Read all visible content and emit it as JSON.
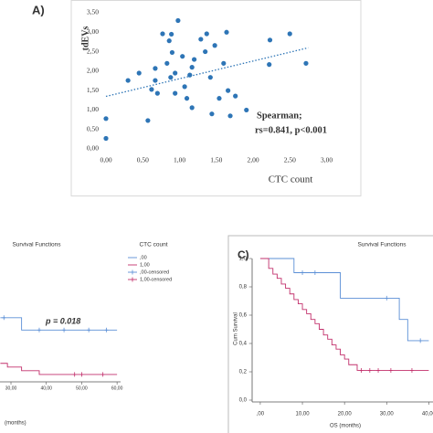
{
  "chart_data": [
    {
      "type": "scatter",
      "label": "A)",
      "ylabel": "tdEVs",
      "xlabel": "CTC count",
      "annotations": [
        "Spearman;",
        "rs=0.841, p<0.001"
      ],
      "color": "#2e75b6",
      "x": [
        0,
        0,
        0.3,
        0.45,
        0.57,
        0.62,
        0.67,
        0.67,
        0.7,
        0.77,
        0.83,
        0.86,
        0.89,
        0.9,
        0.88,
        0.94,
        0.98,
        0.94,
        1.04,
        1.07,
        1.1,
        1.14,
        1.17,
        1.17,
        1.2,
        1.29,
        1.35,
        1.37,
        1.42,
        1.44,
        1.48,
        1.54,
        1.6,
        1.64,
        1.66,
        1.69,
        1.76,
        1.91,
        2.22,
        2.23,
        2.5,
        2.72
      ],
      "values": [
        0.78,
        0.27,
        1.76,
        1.95,
        0.73,
        1.53,
        2.07,
        1.76,
        1.43,
        2.96,
        2.2,
        2.78,
        2.95,
        2.48,
        1.84,
        1.95,
        3.3,
        1.43,
        2.38,
        1.6,
        1.3,
        1.9,
        2.1,
        1.06,
        2.3,
        2.82,
        2.5,
        2.96,
        1.84,
        0.9,
        2.66,
        1.3,
        2.2,
        3.0,
        1.5,
        0.85,
        1.36,
        1.0,
        2.17,
        2.8,
        2.96,
        2.2
      ],
      "trendline": {
        "x": [
          0,
          2.75
        ],
        "values": [
          1.35,
          2.6
        ]
      },
      "xlim": [
        0,
        3
      ],
      "ylim": [
        0,
        3.5
      ],
      "xticks": [
        {
          "value": 0,
          "label": "0,00"
        },
        {
          "value": 0.5,
          "label": "0,50"
        },
        {
          "value": 1,
          "label": "1,00"
        },
        {
          "value": 1.5,
          "label": "1,50"
        },
        {
          "value": 2,
          "label": "2,00"
        },
        {
          "value": 2.5,
          "label": "2,50"
        },
        {
          "value": 3,
          "label": "3,00"
        }
      ],
      "yticks": [
        {
          "value": 0,
          "label": "0,00"
        },
        {
          "value": 0.5,
          "label": "0,50"
        },
        {
          "value": 1,
          "label": "1,00"
        },
        {
          "value": 1.5,
          "label": "1,50"
        },
        {
          "value": 2,
          "label": "2,00"
        },
        {
          "value": 2.5,
          "label": "2,50"
        },
        {
          "value": 3,
          "label": "3,00"
        },
        {
          "value": 3.5,
          "label": "3,50"
        }
      ]
    },
    {
      "type": "line",
      "title": "Survival Functions",
      "legend_title": "CTC count",
      "annotation": "p = 0.018",
      "xlabel": "(months)",
      "xlim": [
        27,
        61
      ],
      "ylim": [
        0,
        1
      ],
      "xticks": [
        {
          "value": 30,
          "label": "30,00"
        },
        {
          "value": 40,
          "label": "40,00"
        },
        {
          "value": 50,
          "label": "50,00"
        },
        {
          "value": 60,
          "label": "60,00"
        }
      ],
      "series": [
        {
          "name": ",00",
          "color": "#5b8fd6",
          "style": "step",
          "x": [
            27,
            33,
            60
          ],
          "values": [
            0.52,
            0.42,
            0.42
          ]
        },
        {
          "name": "1,00",
          "color": "#c2306c",
          "style": "step",
          "x": [
            27,
            29,
            33,
            38,
            60
          ],
          "values": [
            0.15,
            0.12,
            0.09,
            0.06,
            0.06
          ]
        },
        {
          "name": ",00-censored",
          "color": "#5b8fd6",
          "style": "censor",
          "x": [
            28,
            38,
            45,
            52,
            57
          ],
          "values": [
            0.52,
            0.42,
            0.42,
            0.42,
            0.42
          ]
        },
        {
          "name": "1,00-censored",
          "color": "#c2306c",
          "style": "censor",
          "x": [
            48,
            50,
            56
          ],
          "values": [
            0.06,
            0.06,
            0.06
          ]
        }
      ]
    },
    {
      "type": "line",
      "label": "C)",
      "title": "Survival Functions",
      "ylabel": "Cum Survival",
      "xlabel": "OS (months)",
      "xlim": [
        -2,
        41
      ],
      "ylim": [
        0,
        1
      ],
      "xticks": [
        {
          "value": 0,
          "label": ",00"
        },
        {
          "value": 10,
          "label": "10,00"
        },
        {
          "value": 20,
          "label": "20,00"
        },
        {
          "value": 30,
          "label": "30,00"
        },
        {
          "value": 40,
          "label": "40,00"
        }
      ],
      "yticks": [
        {
          "value": 0,
          "label": "0,0"
        },
        {
          "value": 0.2,
          "label": "0,2"
        },
        {
          "value": 0.4,
          "label": "0,4"
        },
        {
          "value": 0.6,
          "label": "0,6"
        },
        {
          "value": 0.8,
          "label": "0,8"
        },
        {
          "value": 1,
          "label": "1,0"
        }
      ],
      "series": [
        {
          "color": "#5b8fd6",
          "style": "step",
          "x": [
            0,
            8,
            19,
            33,
            35,
            40
          ],
          "values": [
            1,
            0.9,
            0.72,
            0.57,
            0.42,
            0.42
          ]
        },
        {
          "color": "#c2306c",
          "style": "step",
          "x": [
            0,
            2,
            3,
            4,
            5,
            6,
            7,
            8,
            9,
            10,
            11,
            12,
            13,
            14,
            15,
            16,
            17,
            18,
            19,
            20,
            21,
            23,
            40
          ],
          "values": [
            1,
            0.93,
            0.89,
            0.86,
            0.82,
            0.79,
            0.75,
            0.71,
            0.68,
            0.64,
            0.61,
            0.57,
            0.54,
            0.5,
            0.46,
            0.43,
            0.39,
            0.36,
            0.32,
            0.29,
            0.25,
            0.21,
            0.21
          ]
        },
        {
          "color": "#5b8fd6",
          "style": "censor",
          "x": [
            10,
            13,
            30,
            38
          ],
          "values": [
            0.9,
            0.9,
            0.72,
            0.42
          ]
        },
        {
          "color": "#c2306c",
          "style": "censor",
          "x": [
            24,
            26,
            28,
            31,
            36
          ],
          "values": [
            0.21,
            0.21,
            0.21,
            0.21,
            0.21
          ]
        }
      ]
    }
  ]
}
